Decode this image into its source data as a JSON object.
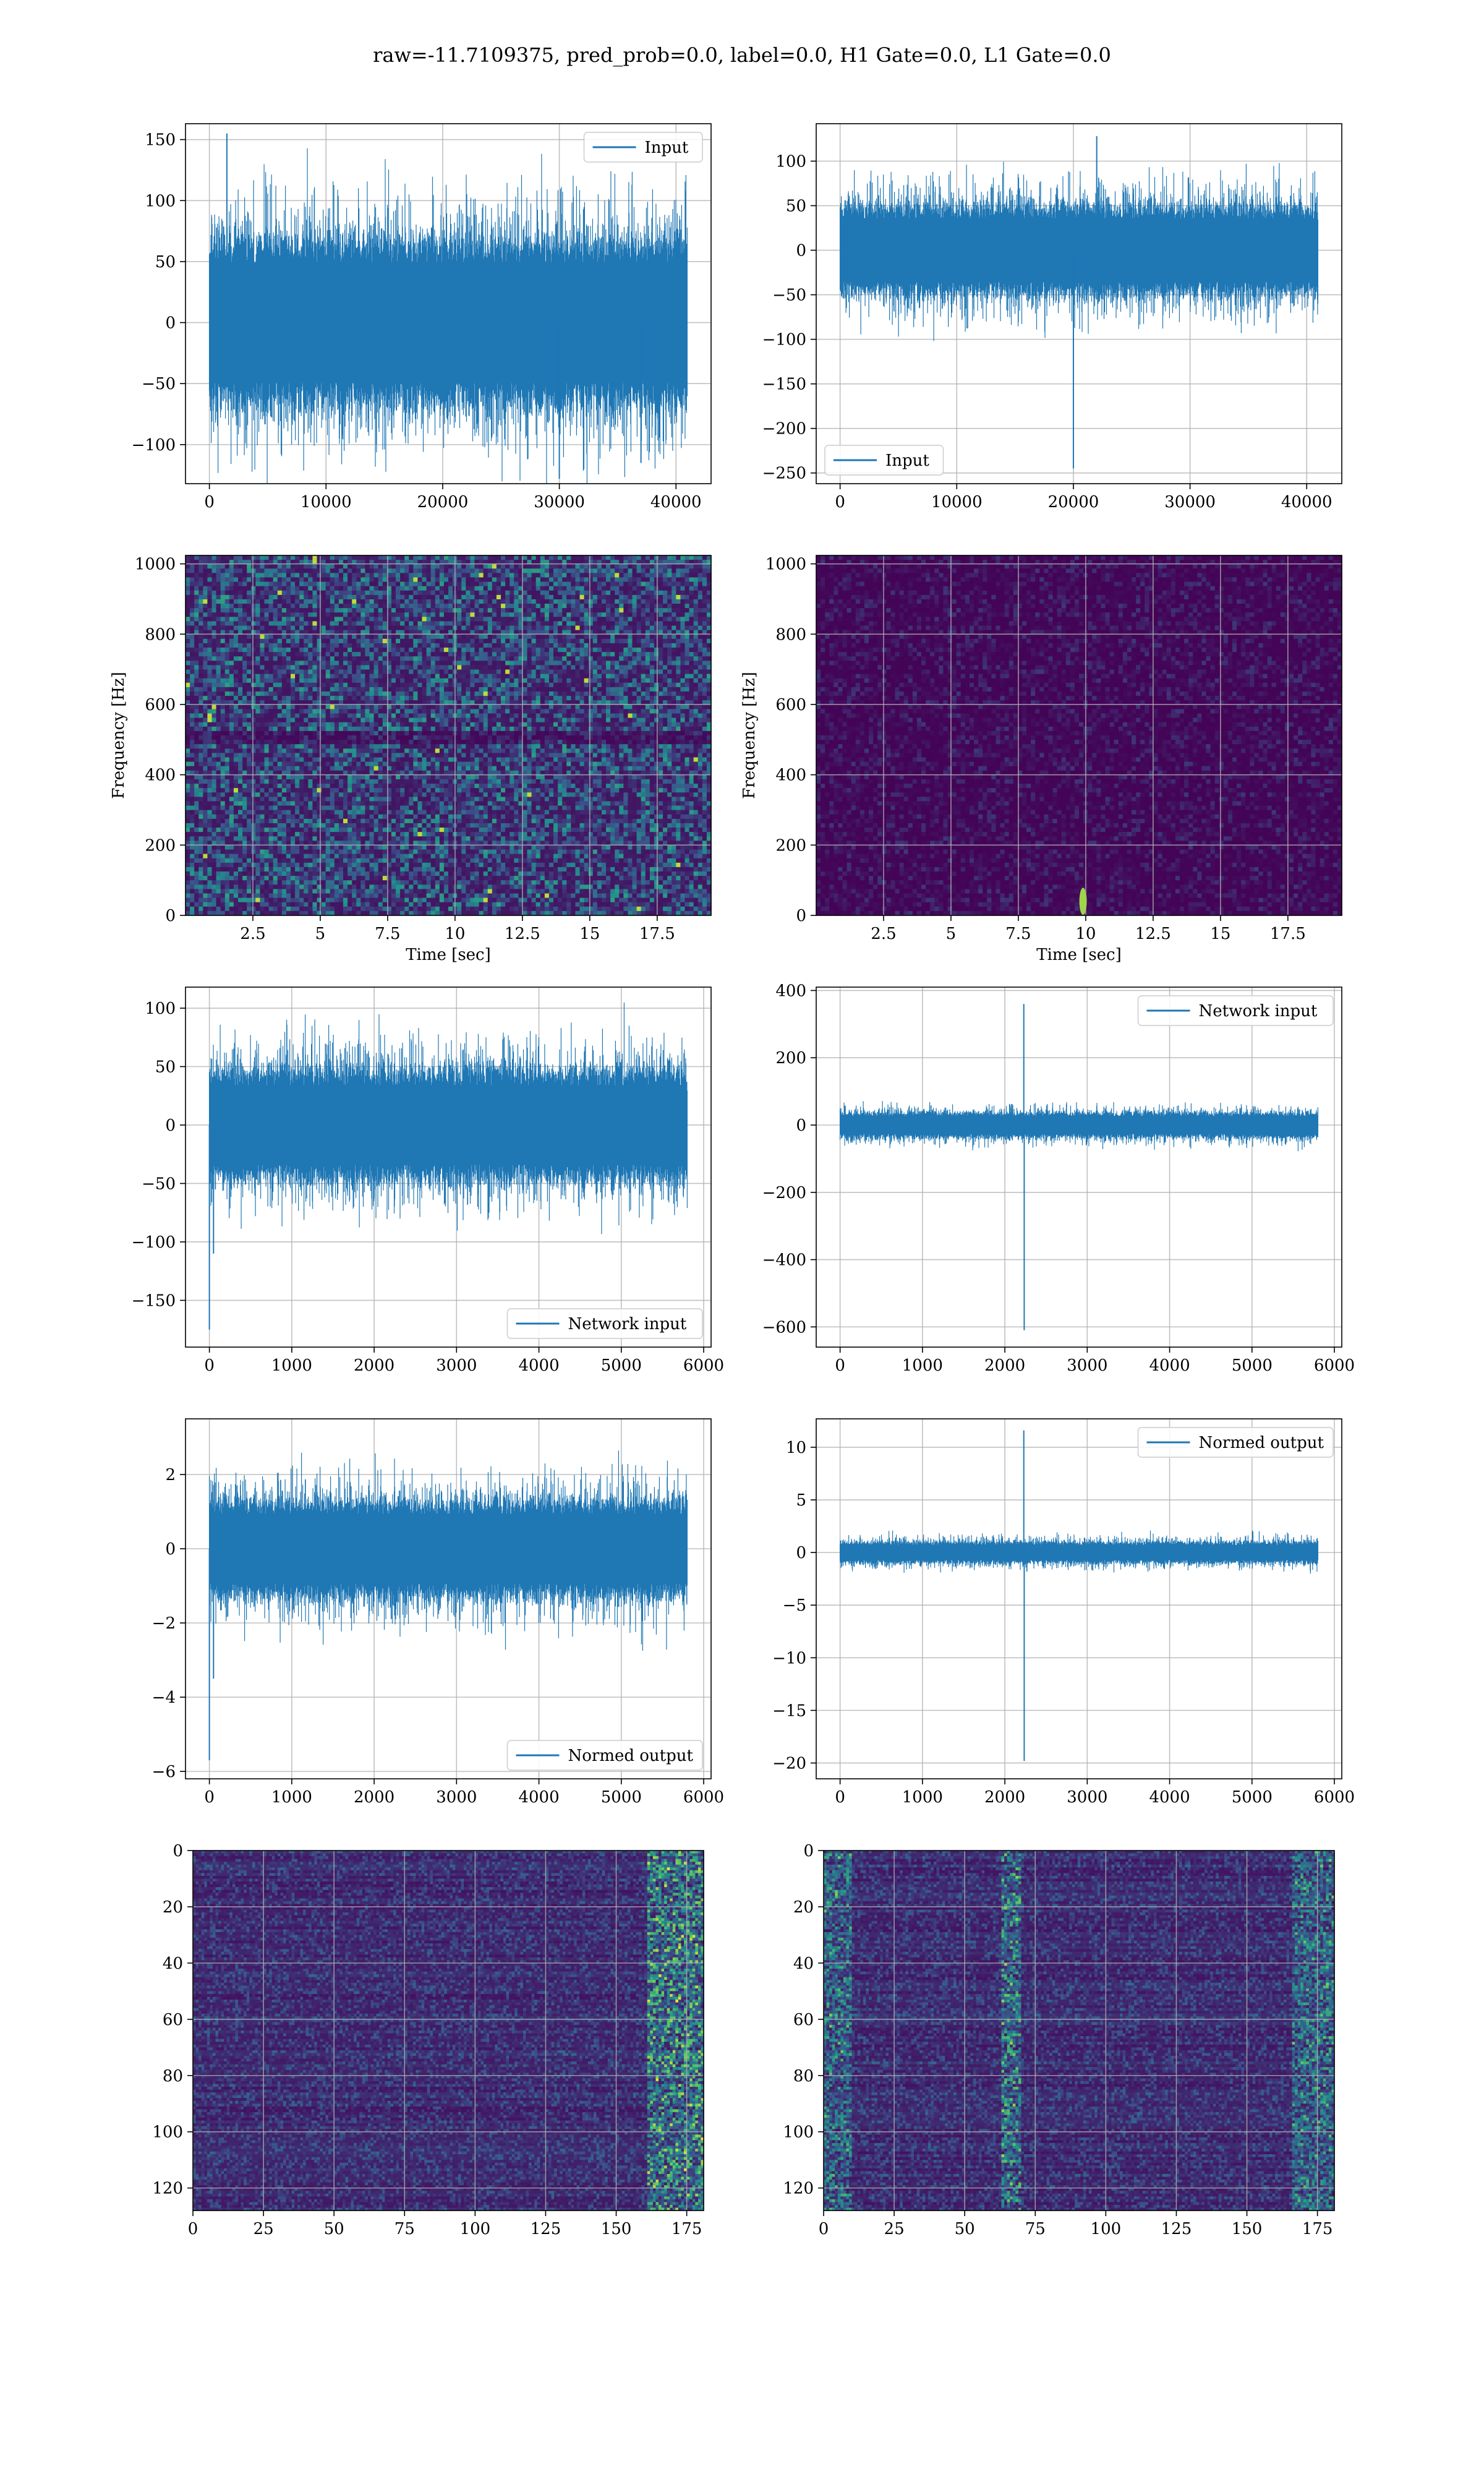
{
  "figure": {
    "title": "raw=-11.7109375, pred_prob=0.0, label=0.0, H1 Gate=0.0, L1 Gate=0.0"
  },
  "colors": {
    "line": "#1f77b4",
    "grid": "#b0b0b0",
    "viridis_low": "#440154",
    "viridis_high": "#fde725"
  },
  "chart_data": [
    {
      "type": "line",
      "series": [
        {
          "name": "Input",
          "x_range": [
            0,
            40960
          ],
          "amplitude": 55,
          "peaks": [
            [
              1500,
              155
            ],
            [
              37000,
              -115
            ],
            [
              30000,
              -128
            ]
          ]
        }
      ],
      "xticks": [
        0,
        10000,
        20000,
        30000,
        40000
      ],
      "yticks": [
        -100,
        -50,
        0,
        50,
        100,
        150
      ],
      "xlim": [
        -2048,
        43008
      ],
      "ylim": [
        -132,
        163
      ],
      "legend": "top-right",
      "xlabel": "",
      "ylabel": "",
      "grid": true
    },
    {
      "type": "line",
      "series": [
        {
          "name": "Input",
          "x_range": [
            0,
            40960
          ],
          "amplitude": 40,
          "peaks": [
            [
              20000,
              -245
            ],
            [
              22000,
              128
            ]
          ]
        }
      ],
      "xticks": [
        0,
        10000,
        20000,
        30000,
        40000
      ],
      "yticks": [
        -250,
        -200,
        -150,
        -100,
        -50,
        0,
        50,
        100
      ],
      "xlim": [
        -2048,
        43008
      ],
      "ylim": [
        -262,
        142
      ],
      "legend": "bottom-left",
      "xlabel": "",
      "ylabel": "",
      "grid": true
    },
    {
      "type": "heatmap",
      "xticks": [
        2.5,
        5.0,
        7.5,
        10.0,
        12.5,
        15.0,
        17.5
      ],
      "yticks": [
        0,
        200,
        400,
        600,
        800,
        1000
      ],
      "xlim": [
        0,
        19.5
      ],
      "ylim": [
        0,
        1024
      ],
      "xlabel": "Time [sec]",
      "ylabel": "Frequency [Hz]",
      "grid": true,
      "pattern": "noisy"
    },
    {
      "type": "heatmap",
      "xticks": [
        2.5,
        5.0,
        7.5,
        10.0,
        12.5,
        15.0,
        17.5
      ],
      "yticks": [
        0,
        200,
        400,
        600,
        800,
        1000
      ],
      "xlim": [
        0,
        19.5
      ],
      "ylim": [
        0,
        1024
      ],
      "xlabel": "Time [sec]",
      "ylabel": "Frequency [Hz]",
      "grid": true,
      "pattern": "dark-with-blip",
      "blip": {
        "t": 9.9,
        "f": 40
      }
    },
    {
      "type": "line",
      "series": [
        {
          "name": "Network input",
          "x_range": [
            0,
            5800
          ],
          "amplitude": 38,
          "peaks": [
            [
              0,
              -175
            ],
            [
              50,
              -110
            ]
          ]
        }
      ],
      "xticks": [
        0,
        1000,
        2000,
        3000,
        4000,
        5000,
        6000
      ],
      "yticks": [
        -150,
        -100,
        -50,
        0,
        50,
        100
      ],
      "xlim": [
        -290,
        6090
      ],
      "ylim": [
        -190,
        118
      ],
      "legend": "bottom-right",
      "xlabel": "",
      "ylabel": "",
      "grid": true
    },
    {
      "type": "line",
      "series": [
        {
          "name": "Network input",
          "x_range": [
            0,
            5800
          ],
          "amplitude": 30,
          "peaks": [
            [
              2230,
              360
            ],
            [
              2235,
              -610
            ]
          ]
        }
      ],
      "xticks": [
        0,
        1000,
        2000,
        3000,
        4000,
        5000,
        6000
      ],
      "yticks": [
        -600,
        -400,
        -200,
        0,
        200,
        400
      ],
      "xlim": [
        -290,
        6090
      ],
      "ylim": [
        -660,
        410
      ],
      "legend": "top-right",
      "xlabel": "",
      "ylabel": "",
      "grid": true
    },
    {
      "type": "line",
      "series": [
        {
          "name": "Normed output",
          "x_range": [
            0,
            5800
          ],
          "amplitude": 1.05,
          "peaks": [
            [
              0,
              -5.7
            ],
            [
              50,
              -3.5
            ]
          ]
        }
      ],
      "xticks": [
        0,
        1000,
        2000,
        3000,
        4000,
        5000,
        6000
      ],
      "yticks": [
        -6,
        -4,
        -2,
        0,
        2
      ],
      "xlim": [
        -290,
        6090
      ],
      "ylim": [
        -6.2,
        3.5
      ],
      "legend": "bottom-right",
      "xlabel": "",
      "ylabel": "",
      "grid": true
    },
    {
      "type": "line",
      "series": [
        {
          "name": "Normed output",
          "x_range": [
            0,
            5800
          ],
          "amplitude": 0.8,
          "peaks": [
            [
              2230,
              11.6
            ],
            [
              2235,
              -19.8
            ]
          ]
        }
      ],
      "xticks": [
        0,
        1000,
        2000,
        3000,
        4000,
        5000,
        6000
      ],
      "yticks": [
        -20,
        -15,
        -10,
        -5,
        0,
        5,
        10
      ],
      "xlim": [
        -290,
        6090
      ],
      "ylim": [
        -21.5,
        12.7
      ],
      "legend": "top-right",
      "xlabel": "",
      "ylabel": "",
      "grid": true
    },
    {
      "type": "heatmap",
      "xticks": [
        0,
        25,
        50,
        75,
        100,
        125,
        150,
        175
      ],
      "yticks": [
        0,
        20,
        40,
        60,
        80,
        100,
        120
      ],
      "xlim": [
        0,
        181
      ],
      "ylim": [
        128,
        0
      ],
      "xlabel": "",
      "ylabel": "",
      "grid": true,
      "pattern": "feature-rows-right"
    },
    {
      "type": "heatmap",
      "xticks": [
        0,
        25,
        50,
        75,
        100,
        125,
        150,
        175
      ],
      "yticks": [
        0,
        20,
        40,
        60,
        80,
        100,
        120
      ],
      "xlim": [
        0,
        181
      ],
      "ylim": [
        128,
        0
      ],
      "xlabel": "",
      "ylabel": "",
      "grid": true,
      "pattern": "feature-rows-center",
      "feature_col": 66
    }
  ]
}
